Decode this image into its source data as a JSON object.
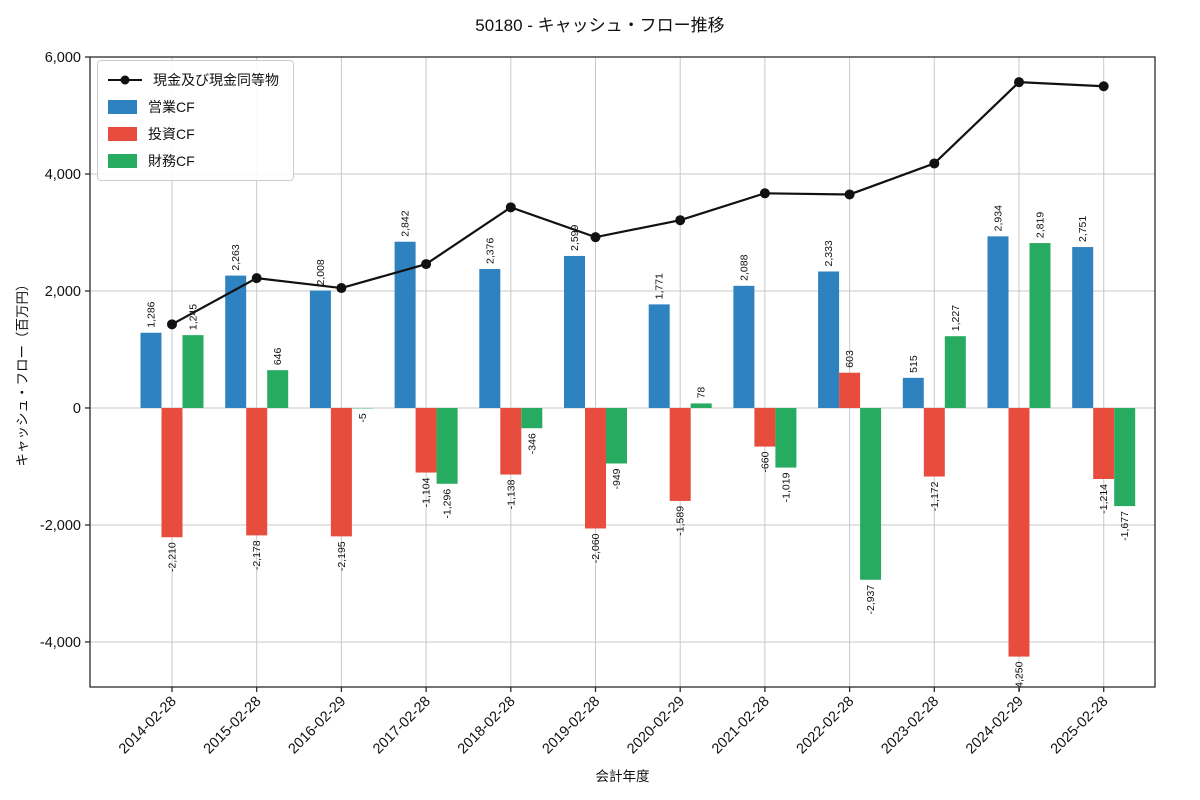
{
  "chart_data": {
    "type": "bar+line",
    "title": "50180 - キャッシュ・フロー推移",
    "xlabel": "会計年度",
    "ylabel": "キャッシュ・フロー（百万円）",
    "categories": [
      "2014-02-28",
      "2015-02-28",
      "2016-02-29",
      "2017-02-28",
      "2018-02-28",
      "2019-02-28",
      "2020-02-29",
      "2021-02-28",
      "2022-02-28",
      "2023-02-28",
      "2024-02-29",
      "2025-02-28"
    ],
    "series": [
      {
        "key": "operating-cf",
        "name": "営業CF",
        "type": "bar",
        "color": "#2f82c0",
        "values": [
          1286,
          2263,
          2008,
          2842,
          2376,
          2599,
          1771,
          2088,
          2333,
          515,
          2934,
          2751
        ]
      },
      {
        "key": "investing-cf",
        "name": "投資CF",
        "type": "bar",
        "color": "#e74c3c",
        "values": [
          -2210,
          -2178,
          -2195,
          -1104,
          -1138,
          -2060,
          -1589,
          -660,
          603,
          -1172,
          -4250,
          -1214
        ]
      },
      {
        "key": "financing-cf",
        "name": "財務CF",
        "type": "bar",
        "color": "#27ab60",
        "values": [
          1245,
          646,
          -5,
          -1296,
          -346,
          -949,
          78,
          -1019,
          -2937,
          1227,
          2819,
          -1677
        ]
      }
    ],
    "line_series": {
      "key": "cash-equivalents",
      "name": "現金及び現金同等物",
      "type": "line",
      "color": "#111111",
      "values": [
        1430,
        2220,
        2050,
        2460,
        3430,
        2920,
        3210,
        3670,
        3650,
        4180,
        5570,
        5500
      ]
    },
    "yticks": [
      6000,
      4000,
      2000,
      0,
      -2000,
      -4000
    ],
    "ytick_labels": [
      "6,000",
      "4,000",
      "2,000",
      "0",
      "-2,000",
      "-4,000"
    ],
    "ylim": [
      -4770,
      6000
    ],
    "grid": true,
    "legend_position": "upper-left",
    "bar_label_format": "thousands-comma"
  }
}
